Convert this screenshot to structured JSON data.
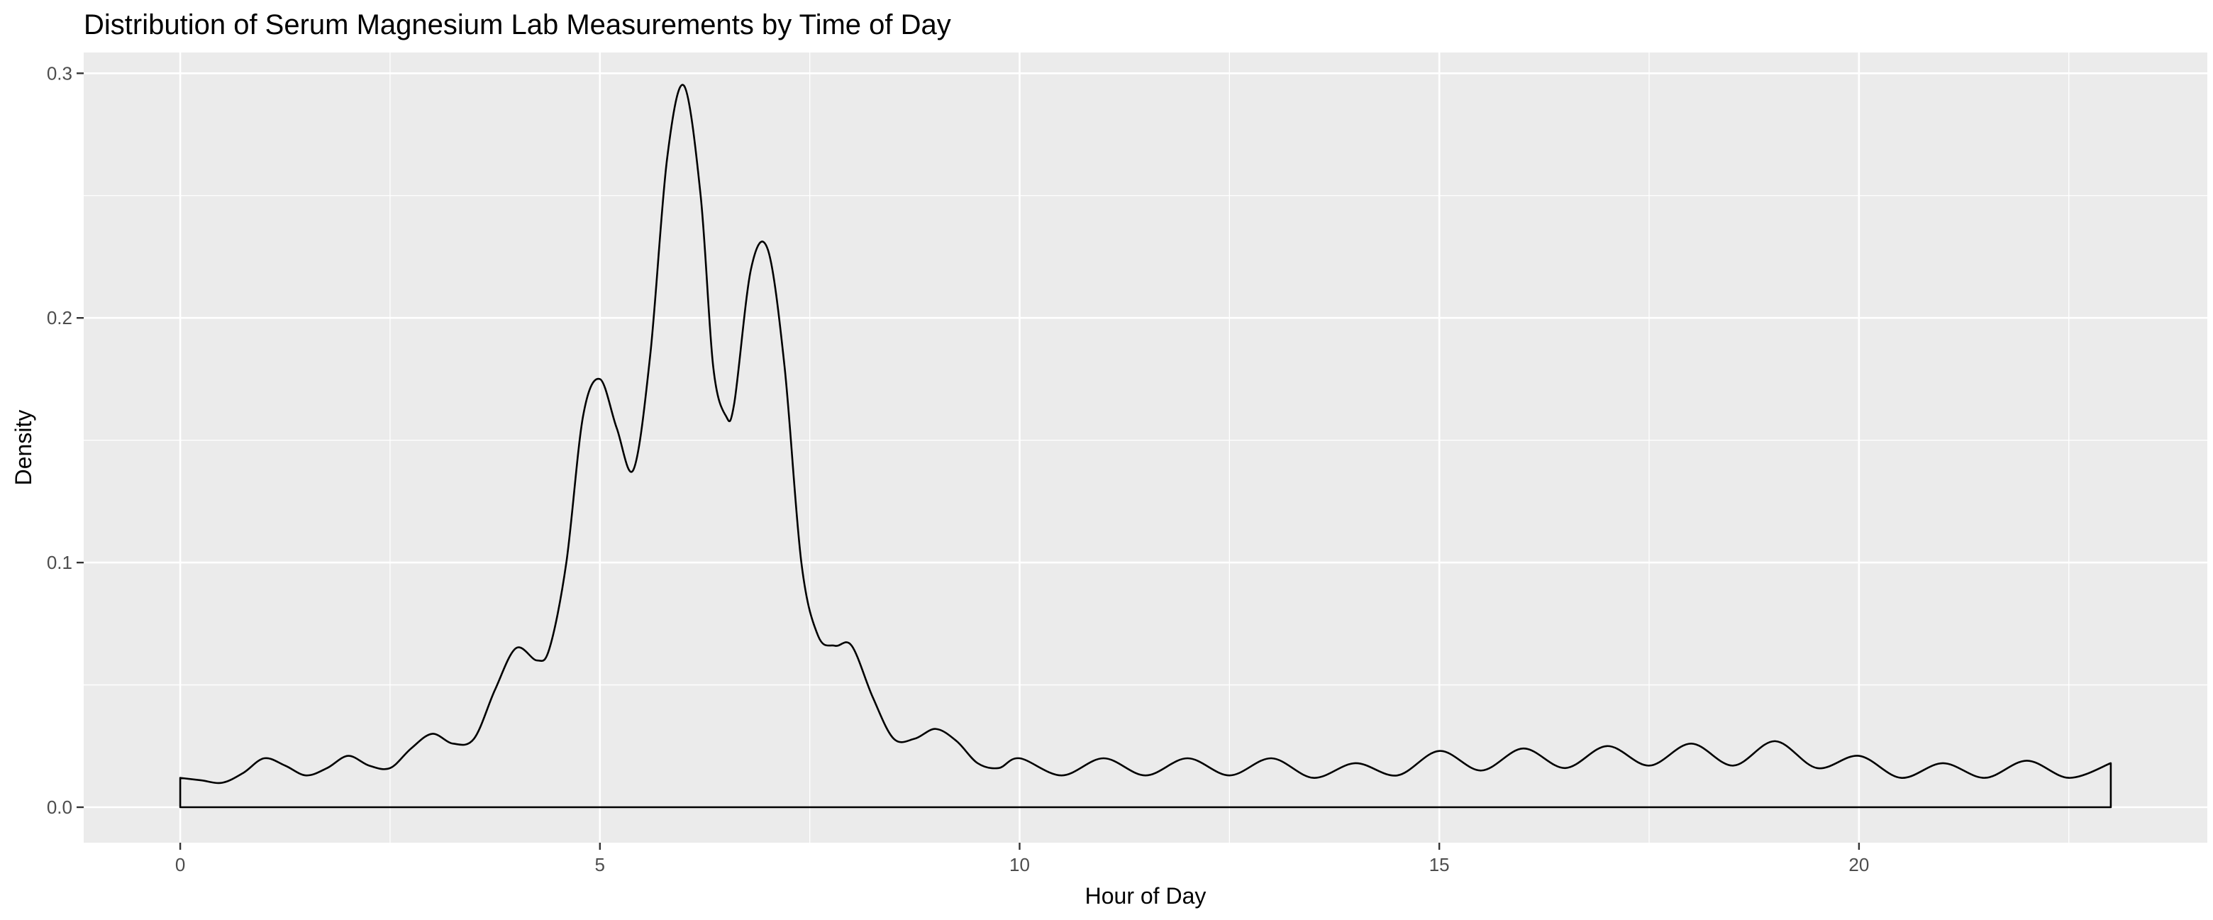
{
  "chart_data": {
    "type": "area",
    "title": "Distribution of Serum Magnesium Lab Measurements by Time of Day",
    "xlabel": "Hour of Day",
    "ylabel": "Density",
    "xlim": [
      -1.15,
      24.15
    ],
    "ylim": [
      -0.0145,
      0.3085
    ],
    "x_ticks": [
      0,
      5,
      10,
      15,
      20
    ],
    "x_tick_labels": [
      "0",
      "5",
      "10",
      "15",
      "20"
    ],
    "y_ticks": [
      0.0,
      0.1,
      0.2,
      0.3
    ],
    "y_tick_labels": [
      "0.0",
      "0.1",
      "0.2",
      "0.3"
    ],
    "grid": true,
    "panel_background": "#EBEBEB",
    "line_color": "#000000",
    "series": [
      {
        "x": [
          0,
          0.25,
          0.5,
          0.75,
          1,
          1.25,
          1.5,
          1.75,
          2,
          2.25,
          2.5,
          2.75,
          3,
          3.25,
          3.5,
          3.75,
          4,
          4.25,
          4.4,
          4.6,
          4.8,
          5,
          5.2,
          5.4,
          5.6,
          5.8,
          6,
          6.2,
          6.35,
          6.5,
          6.6,
          6.8,
          7,
          7.2,
          7.4,
          7.6,
          7.8,
          8,
          8.25,
          8.5,
          8.75,
          9,
          9.25,
          9.5,
          9.75,
          10,
          10.5,
          11,
          11.5,
          12,
          12.5,
          13,
          13.5,
          14,
          14.5,
          15,
          15.5,
          16,
          16.5,
          17,
          17.5,
          18,
          18.5,
          19,
          19.5,
          20,
          20.5,
          21,
          21.5,
          22,
          22.5,
          23
        ],
        "y": [
          0.012,
          0.011,
          0.01,
          0.014,
          0.02,
          0.017,
          0.013,
          0.016,
          0.021,
          0.017,
          0.016,
          0.024,
          0.03,
          0.026,
          0.028,
          0.048,
          0.065,
          0.06,
          0.065,
          0.1,
          0.16,
          0.175,
          0.155,
          0.138,
          0.185,
          0.265,
          0.295,
          0.25,
          0.18,
          0.16,
          0.165,
          0.22,
          0.228,
          0.18,
          0.1,
          0.07,
          0.066,
          0.066,
          0.045,
          0.028,
          0.028,
          0.032,
          0.027,
          0.018,
          0.016,
          0.02,
          0.013,
          0.02,
          0.013,
          0.02,
          0.013,
          0.02,
          0.012,
          0.018,
          0.013,
          0.023,
          0.015,
          0.024,
          0.016,
          0.025,
          0.017,
          0.026,
          0.017,
          0.027,
          0.016,
          0.021,
          0.012,
          0.018,
          0.012,
          0.019,
          0.012,
          0.018
        ]
      }
    ]
  }
}
